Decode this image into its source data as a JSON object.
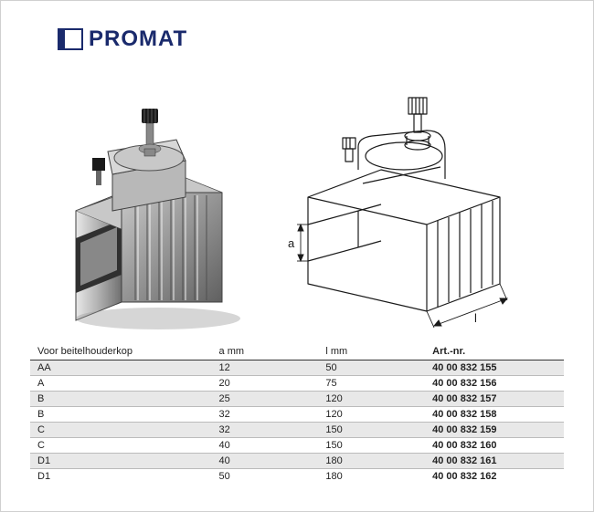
{
  "brand": {
    "name": "PROMAT",
    "color": "#1a2a6c"
  },
  "diagram_labels": {
    "a": "a",
    "l": "l"
  },
  "table": {
    "headers": [
      "Voor beitelhouderkop",
      "a mm",
      "l mm",
      "Art.-nr."
    ],
    "rows": [
      {
        "cols": [
          "AA",
          "12",
          "50",
          "40 00 832 155"
        ],
        "alt": true
      },
      {
        "cols": [
          "A",
          "20",
          "75",
          "40 00 832 156"
        ],
        "alt": false
      },
      {
        "cols": [
          "B",
          "25",
          "120",
          "40 00 832 157"
        ],
        "alt": true
      },
      {
        "cols": [
          "B",
          "32",
          "120",
          "40 00 832 158"
        ],
        "alt": false
      },
      {
        "cols": [
          "C",
          "32",
          "150",
          "40 00 832 159"
        ],
        "alt": true
      },
      {
        "cols": [
          "C",
          "40",
          "150",
          "40 00 832 160"
        ],
        "alt": false
      },
      {
        "cols": [
          "D1",
          "40",
          "180",
          "40 00 832 161"
        ],
        "alt": true
      },
      {
        "cols": [
          "D1",
          "50",
          "180",
          "40 00 832 162"
        ],
        "alt": false
      }
    ],
    "col_widths": [
      "34%",
      "20%",
      "20%",
      "26%"
    ],
    "header_bg": "#ffffff",
    "row_alt_bg": "#e8e8e8"
  },
  "photo_colors": {
    "metal_light": "#d8d8d8",
    "metal_mid": "#a0a0a0",
    "metal_dark": "#606060",
    "shadow": "#404040",
    "black": "#1a1a1a"
  },
  "diagram_colors": {
    "stroke": "#1a1a1a",
    "arrow": "#1a1a1a"
  }
}
